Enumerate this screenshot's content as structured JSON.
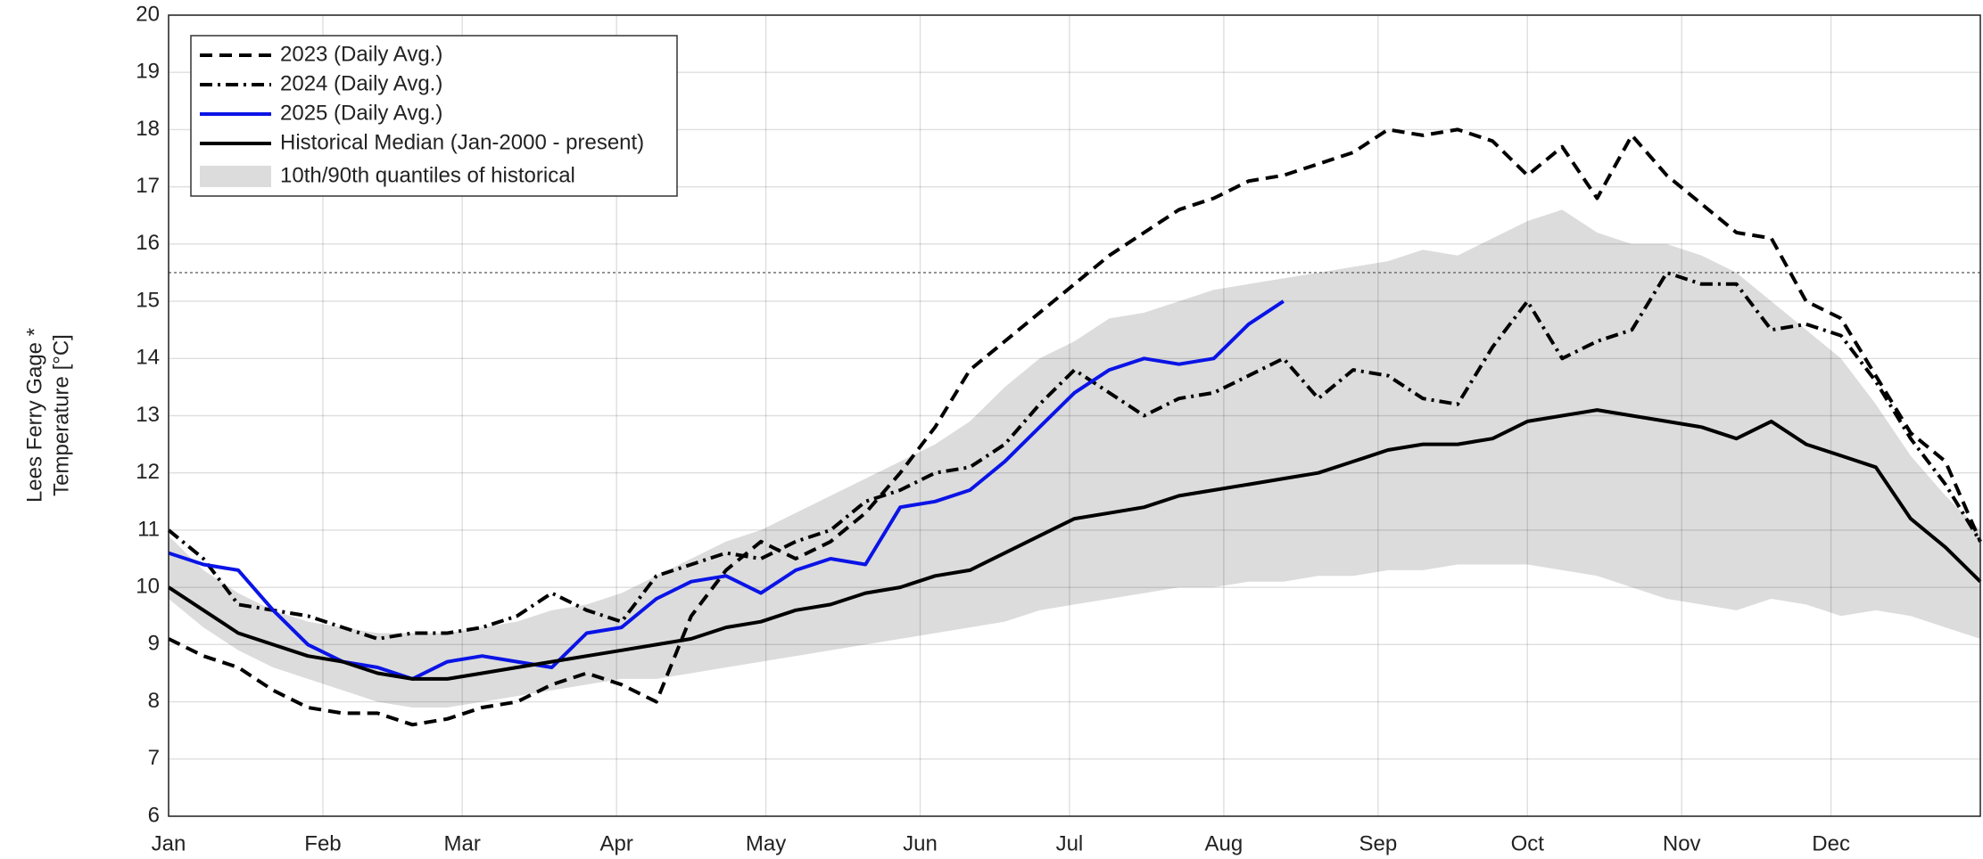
{
  "chart_data": {
    "type": "line",
    "y_label": [
      "Lees Ferry Gage *",
      "Temperature [°C]"
    ],
    "x": [
      1,
      8,
      15,
      22,
      29,
      36,
      43,
      50,
      57,
      64,
      71,
      78,
      85,
      92,
      99,
      106,
      113,
      120,
      127,
      134,
      141,
      148,
      155,
      162,
      169,
      176,
      183,
      190,
      197,
      204,
      211,
      218,
      225,
      232,
      239,
      246,
      253,
      260,
      267,
      274,
      281,
      288,
      295,
      302,
      309,
      316,
      323,
      330,
      337,
      344,
      351,
      358,
      365
    ],
    "xlim": [
      1,
      365
    ],
    "xticks": [
      {
        "value": 1,
        "label": "Jan"
      },
      {
        "value": 32,
        "label": "Feb"
      },
      {
        "value": 60,
        "label": "Mar"
      },
      {
        "value": 91,
        "label": "Apr"
      },
      {
        "value": 121,
        "label": "May"
      },
      {
        "value": 152,
        "label": "Jun"
      },
      {
        "value": 182,
        "label": "Jul"
      },
      {
        "value": 213,
        "label": "Aug"
      },
      {
        "value": 244,
        "label": "Sep"
      },
      {
        "value": 274,
        "label": "Oct"
      },
      {
        "value": 305,
        "label": "Nov"
      },
      {
        "value": 335,
        "label": "Dec"
      }
    ],
    "ylim": [
      6,
      20
    ],
    "yticks": [
      6,
      7,
      8,
      9,
      10,
      11,
      12,
      13,
      14,
      15,
      16,
      17,
      18,
      19,
      20
    ],
    "grid": true,
    "legend": "upper left",
    "threshold": 15.5,
    "band": {
      "name": "10th/90th quantiles of historical",
      "color": "#dcdcdc",
      "low": [
        9.8,
        9.3,
        8.9,
        8.6,
        8.4,
        8.2,
        8.0,
        7.9,
        7.9,
        8.0,
        8.1,
        8.2,
        8.3,
        8.4,
        8.4,
        8.5,
        8.6,
        8.7,
        8.8,
        8.9,
        9.0,
        9.1,
        9.2,
        9.3,
        9.4,
        9.6,
        9.7,
        9.8,
        9.9,
        10.0,
        10.0,
        10.1,
        10.1,
        10.2,
        10.2,
        10.3,
        10.3,
        10.4,
        10.4,
        10.4,
        10.3,
        10.2,
        10.0,
        9.8,
        9.7,
        9.6,
        9.8,
        9.7,
        9.5,
        9.6,
        9.5,
        9.3,
        9.1
      ],
      "high": [
        10.9,
        10.3,
        9.9,
        9.6,
        9.4,
        9.3,
        9.2,
        9.2,
        9.2,
        9.3,
        9.4,
        9.6,
        9.7,
        9.9,
        10.2,
        10.5,
        10.8,
        11.0,
        11.3,
        11.6,
        11.9,
        12.2,
        12.5,
        12.9,
        13.5,
        14.0,
        14.3,
        14.7,
        14.8,
        15.0,
        15.2,
        15.3,
        15.4,
        15.5,
        15.6,
        15.7,
        15.9,
        15.8,
        16.1,
        16.4,
        16.6,
        16.2,
        16.0,
        16.0,
        15.8,
        15.5,
        15.0,
        14.5,
        14.0,
        13.2,
        12.3,
        11.6,
        11.0
      ]
    },
    "series": [
      {
        "name": "2023 (Daily Avg.)",
        "color": "#000000",
        "dash": "dashed",
        "values": [
          9.1,
          8.8,
          8.6,
          8.2,
          7.9,
          7.8,
          7.8,
          7.6,
          7.7,
          7.9,
          8.0,
          8.3,
          8.5,
          8.3,
          8.0,
          9.5,
          10.3,
          10.8,
          10.5,
          10.8,
          11.3,
          12.0,
          12.8,
          13.8,
          14.3,
          14.8,
          15.3,
          15.8,
          16.2,
          16.6,
          16.8,
          17.1,
          17.2,
          17.4,
          17.6,
          18.0,
          17.9,
          18.0,
          17.8,
          17.2,
          17.7,
          16.8,
          17.9,
          17.2,
          16.7,
          16.2,
          16.1,
          15.0,
          14.7,
          13.7,
          12.7,
          12.2,
          10.8
        ]
      },
      {
        "name": "2024 (Daily Avg.)",
        "color": "#000000",
        "dash": "dashdot",
        "values": [
          11.0,
          10.5,
          9.7,
          9.6,
          9.5,
          9.3,
          9.1,
          9.2,
          9.2,
          9.3,
          9.5,
          9.9,
          9.6,
          9.4,
          10.2,
          10.4,
          10.6,
          10.5,
          10.8,
          11.0,
          11.5,
          11.7,
          12.0,
          12.1,
          12.5,
          13.2,
          13.8,
          13.4,
          13.0,
          13.3,
          13.4,
          13.7,
          14.0,
          13.3,
          13.8,
          13.7,
          13.3,
          13.2,
          14.2,
          15.0,
          14.0,
          14.3,
          14.5,
          15.5,
          15.3,
          15.3,
          14.5,
          14.6,
          14.4,
          13.6,
          12.6,
          11.8,
          10.8
        ]
      },
      {
        "name": "2025 (Daily Avg.)",
        "color": "#0a14e6",
        "dash": "solid",
        "values": [
          10.6,
          10.4,
          10.3,
          9.6,
          9.0,
          8.7,
          8.6,
          8.4,
          8.7,
          8.8,
          8.7,
          8.6,
          9.2,
          9.3,
          9.8,
          10.1,
          10.2,
          9.9,
          10.3,
          10.5,
          10.4,
          11.4,
          11.5,
          11.7,
          12.2,
          12.8,
          13.4,
          13.8,
          14.0,
          13.9,
          14.0,
          14.6,
          15.0,
          null,
          null,
          null,
          null,
          null,
          null,
          null,
          null,
          null,
          null,
          null,
          null,
          null,
          null,
          null,
          null,
          null,
          null,
          null,
          null
        ]
      },
      {
        "name": "Historical Median (Jan-2000 - present)",
        "color": "#000000",
        "dash": "solid",
        "values": [
          10.0,
          9.6,
          9.2,
          9.0,
          8.8,
          8.7,
          8.5,
          8.4,
          8.4,
          8.5,
          8.6,
          8.7,
          8.8,
          8.9,
          9.0,
          9.1,
          9.3,
          9.4,
          9.6,
          9.7,
          9.9,
          10.0,
          10.2,
          10.3,
          10.6,
          10.9,
          11.2,
          11.3,
          11.4,
          11.6,
          11.7,
          11.8,
          11.9,
          12.0,
          12.2,
          12.4,
          12.5,
          12.5,
          12.6,
          12.9,
          13.0,
          13.1,
          13.0,
          12.9,
          12.8,
          12.6,
          12.9,
          12.5,
          12.3,
          12.1,
          11.2,
          10.7,
          10.1
        ]
      }
    ]
  }
}
